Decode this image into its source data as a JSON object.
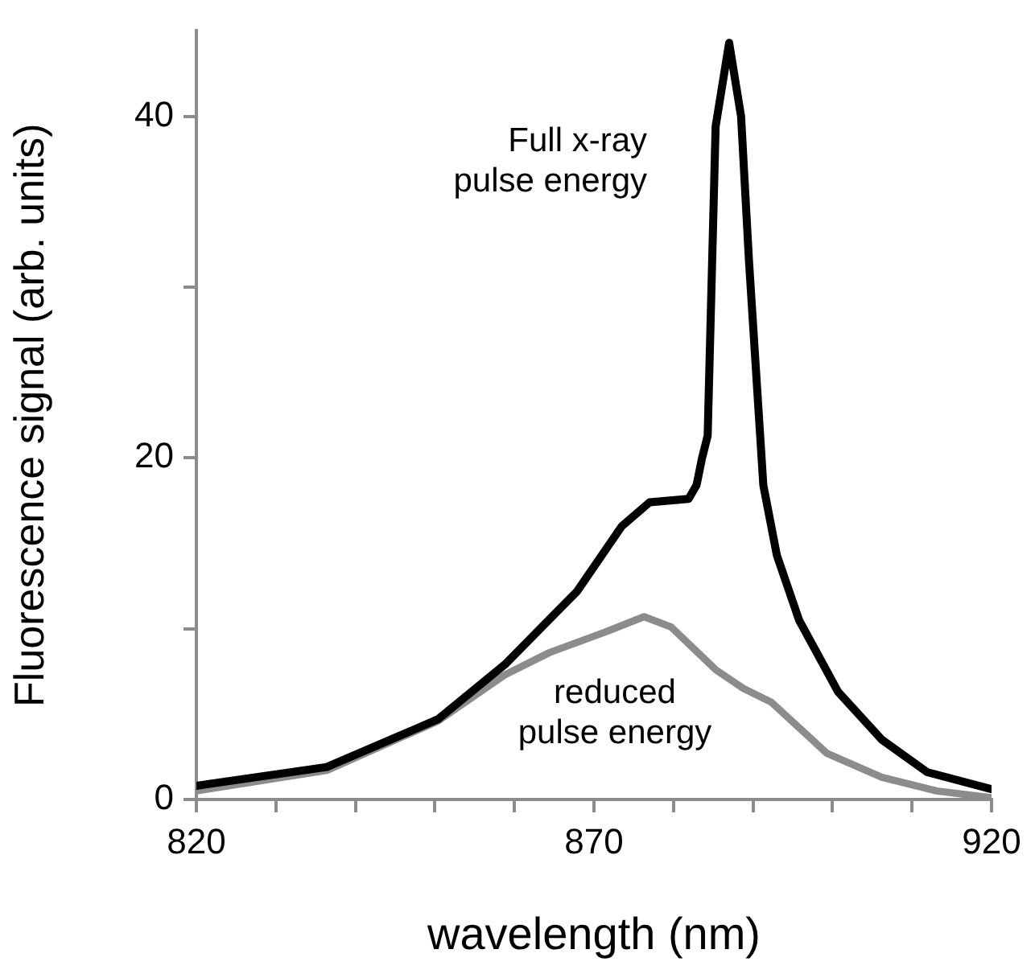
{
  "chart_data": {
    "type": "line",
    "xlabel": "wavelength (nm)",
    "ylabel": "Fluorescence signal (arb. units)",
    "xlim": [
      820,
      920
    ],
    "xticks": [
      820,
      {
        "value": 830,
        "label": null
      },
      {
        "value": 840,
        "label": null
      },
      {
        "value": 850,
        "label": null
      },
      {
        "value": 860,
        "label": null
      },
      870,
      {
        "value": 880,
        "label": null
      },
      {
        "value": 890,
        "label": null
      },
      {
        "value": 900,
        "label": null
      },
      {
        "value": 910,
        "label": null
      },
      920
    ],
    "ylim": [
      0,
      45
    ],
    "yticks": [
      0,
      {
        "value": 10,
        "label": null
      },
      20,
      {
        "value": 30,
        "label": null
      },
      40
    ],
    "grid": false,
    "legend": false,
    "marker": "none",
    "line_style": "solid",
    "annotations": [
      "Full x-ray pulse energy",
      "reduced pulse energy"
    ],
    "series": [
      {
        "color": "#000000",
        "x": [
          820,
          836.4,
          850.4,
          858.8,
          867.9,
          873.5,
          877,
          881.9,
          882.9,
          883.6,
          884.3,
          885.3,
          887,
          888.5,
          889.5,
          891.3,
          893,
          895.8,
          900.7,
          906.2,
          911.9,
          920
        ],
        "values": [
          0.8,
          1.9,
          4.7,
          7.9,
          12.2,
          16.0,
          17.4,
          17.6,
          18.4,
          20,
          21.3,
          39.4,
          44.3,
          40,
          31.5,
          18.4,
          14.3,
          10.5,
          6.3,
          3.5,
          1.6,
          0.6
        ]
      },
      {
        "color": "#8c8c8c",
        "x": [
          820,
          836.4,
          850.4,
          858.8,
          864.4,
          871.4,
          876.3,
          879.7,
          885.3,
          888.8,
          892.3,
          899.3,
          906.2,
          913.1,
          920
        ],
        "values": [
          0.5,
          1.7,
          4.6,
          7.3,
          8.6,
          9.8,
          10.7,
          10.1,
          7.6,
          6.5,
          5.7,
          2.7,
          1.3,
          0.5,
          0.1
        ]
      }
    ]
  }
}
